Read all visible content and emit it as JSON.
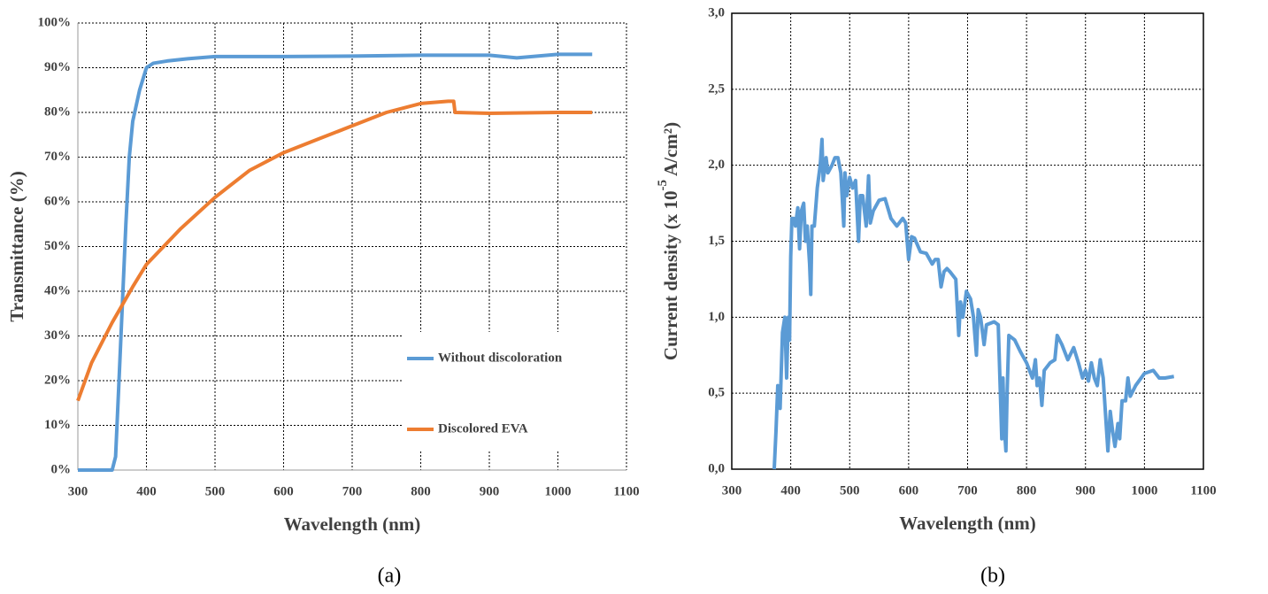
{
  "chart_data": [
    {
      "type": "line",
      "xlabel": "Wavelength (nm)",
      "ylabel": "Transmittance (%)",
      "caption": "(a)",
      "xlim": [
        300,
        1100
      ],
      "xticks": [
        300,
        400,
        500,
        600,
        700,
        800,
        900,
        1000,
        1100
      ],
      "ylim": [
        0,
        100
      ],
      "yticks": [
        {
          "value": 0,
          "label": "0%"
        },
        {
          "value": 10,
          "label": "10%"
        },
        {
          "value": 20,
          "label": "20%"
        },
        {
          "value": 30,
          "label": "30%"
        },
        {
          "value": 40,
          "label": "40%"
        },
        {
          "value": 50,
          "label": "50%"
        },
        {
          "value": 60,
          "label": "60%"
        },
        {
          "value": 70,
          "label": "70%"
        },
        {
          "value": 80,
          "label": "80%"
        },
        {
          "value": 90,
          "label": "90%"
        },
        {
          "value": 100,
          "label": "100%"
        }
      ],
      "grid": true,
      "legend": "lower right",
      "series": [
        {
          "name": "Without discoloration",
          "color": "#5b9bd5",
          "x": [
            300,
            340,
            350,
            355,
            360,
            370,
            375,
            380,
            390,
            400,
            410,
            430,
            460,
            500,
            600,
            700,
            800,
            900,
            940,
            1000,
            1050
          ],
          "values": [
            0,
            0,
            0,
            3,
            20,
            55,
            70,
            78,
            85,
            90,
            91,
            91.5,
            92,
            92.5,
            92.5,
            92.6,
            92.8,
            92.8,
            92.2,
            93,
            93
          ]
        },
        {
          "name": "Discolored EVA",
          "color": "#ed7d31",
          "x": [
            300,
            320,
            350,
            380,
            400,
            450,
            500,
            550,
            600,
            650,
            700,
            750,
            800,
            840,
            848,
            850,
            900,
            1000,
            1050
          ],
          "values": [
            15.5,
            24,
            33,
            41,
            46,
            54,
            61,
            67,
            71,
            74,
            77,
            80,
            82,
            82.5,
            82.5,
            80,
            79.8,
            80,
            80
          ]
        }
      ]
    },
    {
      "type": "line",
      "xlabel": "Wavelength (nm)",
      "ylabel": [
        "Current density (x 10",
        "-5",
        "A/cm²)"
      ],
      "caption": "(b)",
      "xlim": [
        300,
        1100
      ],
      "xticks": [
        300,
        400,
        500,
        600,
        700,
        800,
        900,
        1000,
        1100
      ],
      "ylim": [
        0,
        3
      ],
      "yticks": [
        {
          "value": 0,
          "label": "0,0"
        },
        {
          "value": 0.5,
          "label": "0,5"
        },
        {
          "value": 1,
          "label": "1,0"
        },
        {
          "value": 1.5,
          "label": "1,5"
        },
        {
          "value": 2,
          "label": "2,0"
        },
        {
          "value": 2.5,
          "label": "2,5"
        },
        {
          "value": 3,
          "label": "3,0"
        }
      ],
      "grid": true,
      "series": [
        {
          "color": "#5b9bd5",
          "x": [
            372,
            375,
            378,
            382,
            386,
            390,
            393,
            396,
            398,
            400,
            402,
            405,
            408,
            412,
            415,
            418,
            422,
            425,
            428,
            432,
            434,
            436,
            440,
            445,
            450,
            453,
            455,
            460,
            463,
            470,
            475,
            480,
            485,
            490,
            492,
            495,
            500,
            505,
            510,
            515,
            518,
            522,
            528,
            532,
            535,
            540,
            550,
            560,
            570,
            580,
            590,
            595,
            600,
            605,
            610,
            620,
            630,
            640,
            645,
            650,
            655,
            660,
            665,
            670,
            680,
            685,
            688,
            692,
            698,
            705,
            710,
            715,
            718,
            722,
            728,
            732,
            745,
            752,
            758,
            760,
            762,
            765,
            767,
            770,
            780,
            790,
            800,
            810,
            815,
            818,
            822,
            826,
            830,
            840,
            848,
            852,
            860,
            870,
            880,
            888,
            895,
            900,
            905,
            910,
            915,
            920,
            925,
            930,
            935,
            938,
            942,
            946,
            950,
            955,
            958,
            962,
            968,
            972,
            976,
            985,
            1000,
            1015,
            1025,
            1035,
            1050
          ],
          "values": [
            0,
            0.25,
            0.55,
            0.4,
            0.9,
            1.0,
            0.6,
            1.0,
            0.85,
            1.4,
            1.65,
            1.65,
            1.6,
            1.72,
            1.45,
            1.7,
            1.75,
            1.5,
            1.6,
            1.35,
            1.15,
            1.6,
            1.6,
            1.85,
            2.0,
            2.17,
            1.9,
            2.05,
            1.95,
            2.0,
            2.05,
            2.05,
            1.95,
            1.6,
            1.95,
            1.8,
            1.92,
            1.85,
            1.9,
            1.5,
            1.8,
            1.8,
            1.6,
            1.93,
            1.62,
            1.7,
            1.77,
            1.78,
            1.65,
            1.6,
            1.65,
            1.62,
            1.38,
            1.53,
            1.52,
            1.43,
            1.42,
            1.35,
            1.38,
            1.38,
            1.2,
            1.3,
            1.32,
            1.3,
            1.25,
            0.88,
            1.1,
            1.0,
            1.17,
            1.12,
            1.0,
            0.75,
            1.05,
            1.0,
            0.82,
            0.95,
            0.97,
            0.95,
            0.2,
            0.6,
            0.3,
            0.12,
            0.5,
            0.88,
            0.85,
            0.77,
            0.7,
            0.6,
            0.72,
            0.55,
            0.6,
            0.42,
            0.65,
            0.7,
            0.72,
            0.88,
            0.82,
            0.72,
            0.8,
            0.7,
            0.6,
            0.65,
            0.58,
            0.7,
            0.6,
            0.55,
            0.72,
            0.6,
            0.3,
            0.12,
            0.38,
            0.25,
            0.15,
            0.3,
            0.2,
            0.45,
            0.45,
            0.6,
            0.48,
            0.55,
            0.63,
            0.65,
            0.6,
            0.6,
            0.61
          ]
        }
      ]
    }
  ]
}
